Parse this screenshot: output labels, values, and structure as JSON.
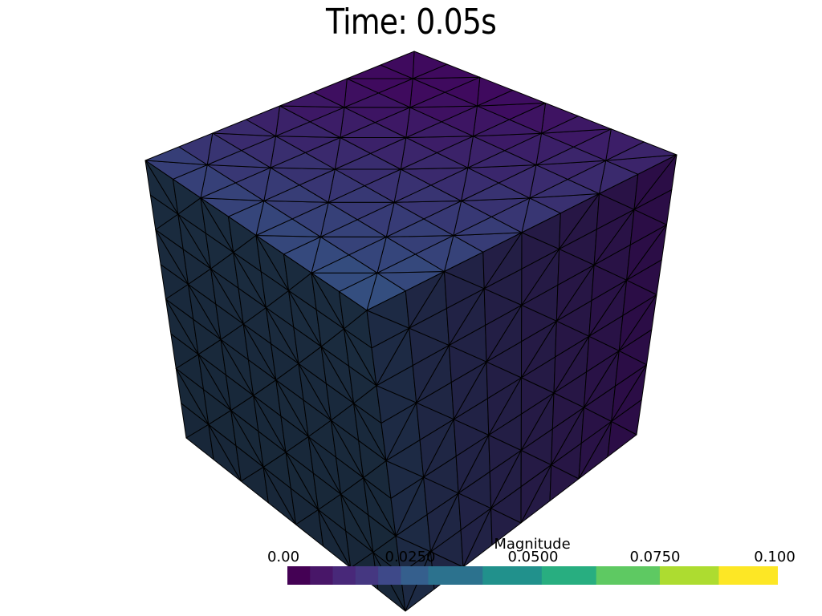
{
  "title": "Time: 0.05s",
  "colors": {
    "background": "#ffffff",
    "edges": "#000000",
    "top_face_light": "#315f87",
    "top_face_dark": "#3f0a5e",
    "left_face_light": "#1d2f44",
    "left_face_dark": "#152333",
    "right_face_light": "#1c2c44",
    "right_face_dark": "#2b0d46"
  },
  "colorbar": {
    "title": "Magnitude",
    "colormap": "viridis",
    "ticks": [
      "0.00",
      "0.0250",
      "0.0500",
      "0.0750",
      "0.100"
    ],
    "range": [
      0,
      0.1
    ],
    "segments": [
      "#440154",
      "#481668",
      "#482879",
      "#453781",
      "#3e4989",
      "#355f8d",
      "#2c728e",
      "#21918c",
      "#28ae80",
      "#5ec962",
      "#addc30",
      "#fde725"
    ]
  },
  "mesh": {
    "type": "triangulated cube",
    "divisions": 8
  }
}
